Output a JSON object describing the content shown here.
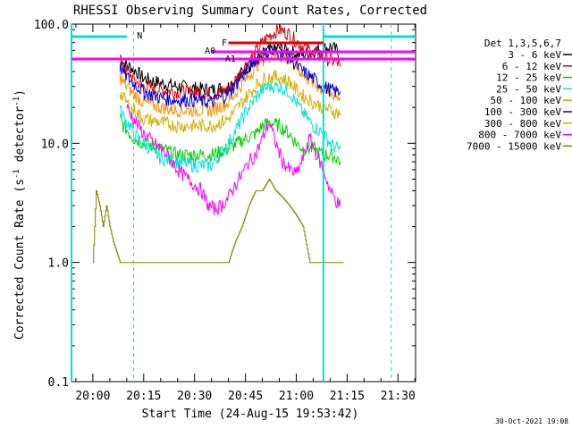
{
  "chart_data": {
    "type": "line",
    "title": "RHESSI Observing Summary Count Rates, Corrected",
    "xlabel": "Start Time (24-Aug-15 19:53:42)",
    "ylabel": "Corrected Count Rate (s⁻¹ detector⁻¹)",
    "ylabel_main": "Corrected Count Rate (s",
    "ylabel_sup1": "-1",
    "ylabel_mid": " detector",
    "ylabel_sup2": "-1",
    "ylabel_end": ")",
    "footer": "30-Oct-2021 19:08",
    "y_scale": "log",
    "ylim": [
      0.1,
      100
    ],
    "xlim": [
      "19:54",
      "21:35"
    ],
    "x_ticks": [
      "20:00",
      "20:15",
      "20:30",
      "20:45",
      "21:00",
      "21:15",
      "21:30"
    ],
    "x_tick_minutes": [
      0,
      15,
      30,
      45,
      60,
      75,
      90
    ],
    "y_ticks": [
      "0.1",
      "1.0",
      "10.0",
      "100.0"
    ],
    "y_tick_values": [
      0.1,
      1,
      10,
      100
    ],
    "legend_title": "Det 1,3,5,6,7",
    "legend_position": "right",
    "series": [
      {
        "name": "3 - 6 keV",
        "color": "#000000",
        "x": [
          8,
          9,
          10,
          11,
          12,
          15,
          20,
          25,
          30,
          35,
          40,
          45,
          48,
          50,
          52,
          55,
          58,
          60,
          62,
          65,
          68,
          70,
          72,
          73
        ],
        "y": [
          55,
          48,
          45,
          44,
          42,
          35,
          32,
          30,
          29,
          28,
          30,
          42,
          50,
          55,
          60,
          63,
          60,
          57,
          55,
          60,
          62,
          65,
          60,
          52
        ]
      },
      {
        "name": "6 - 12 keV",
        "color": "#e00000",
        "x": [
          8,
          9,
          10,
          11,
          12,
          15,
          20,
          25,
          30,
          35,
          40,
          45,
          48,
          50,
          52,
          55,
          58,
          60,
          62,
          65,
          68,
          70,
          72,
          73
        ],
        "y": [
          47,
          42,
          40,
          38,
          34,
          30,
          28,
          27,
          27,
          26,
          28,
          45,
          58,
          70,
          80,
          90,
          82,
          72,
          65,
          58,
          52,
          50,
          48,
          44
        ]
      },
      {
        "name": "12 - 25 keV",
        "color": "#00d000",
        "x": [
          8,
          9,
          10,
          11,
          12,
          15,
          20,
          25,
          30,
          35,
          40,
          45,
          48,
          50,
          52,
          55,
          58,
          60,
          62,
          65,
          68,
          70,
          72,
          73
        ],
        "y": [
          16,
          14,
          13,
          12,
          11,
          10,
          9,
          8,
          8,
          8,
          9,
          11,
          12,
          14,
          15,
          14,
          12,
          10,
          9,
          9,
          8,
          8,
          7.5,
          7
        ]
      },
      {
        "name": "25 - 50 keV",
        "color": "#00e0e0",
        "x": [
          8,
          9,
          10,
          11,
          12,
          15,
          20,
          25,
          30,
          35,
          40,
          45,
          48,
          50,
          52,
          55,
          58,
          60,
          62,
          65,
          68,
          70,
          72,
          73
        ],
        "y": [
          19,
          17,
          15,
          14,
          12,
          10,
          7.5,
          7,
          6.5,
          6.5,
          10,
          18,
          24,
          28,
          30,
          30,
          27,
          22,
          18,
          14,
          12,
          10,
          9,
          9
        ]
      },
      {
        "name": "50 - 100 keV",
        "color": "#ff9000",
        "x": [
          8,
          9,
          10,
          11,
          12,
          15,
          20,
          25,
          30,
          35,
          40,
          45,
          48,
          50,
          52,
          55,
          58,
          60,
          62,
          65,
          68,
          70,
          72,
          73
        ],
        "y": [
          36,
          32,
          30,
          28,
          26,
          22,
          20,
          19,
          19,
          19,
          22,
          34,
          44,
          50,
          54,
          54,
          50,
          44,
          38,
          32,
          28,
          26,
          25,
          24
        ]
      },
      {
        "name": "100 - 300 keV",
        "color": "#0000e0",
        "x": [
          8,
          9,
          10,
          11,
          12,
          15,
          20,
          25,
          30,
          35,
          40,
          45,
          48,
          50,
          52,
          55,
          58,
          60,
          62,
          65,
          68,
          70,
          72,
          73
        ],
        "y": [
          44,
          40,
          36,
          34,
          32,
          27,
          24,
          23,
          23,
          22,
          26,
          40,
          50,
          55,
          58,
          57,
          52,
          45,
          40,
          35,
          30,
          28,
          27,
          27
        ]
      },
      {
        "name": "300 - 800 keV",
        "color": "#d0b000",
        "x": [
          8,
          9,
          10,
          11,
          12,
          15,
          20,
          25,
          30,
          35,
          40,
          45,
          48,
          50,
          52,
          55,
          58,
          60,
          62,
          65,
          68,
          70,
          72,
          73
        ],
        "y": [
          27,
          24,
          22,
          20,
          19,
          16,
          15,
          14,
          14,
          14,
          16,
          24,
          30,
          34,
          36,
          36,
          33,
          28,
          25,
          22,
          20,
          19,
          18,
          18
        ]
      },
      {
        "name": "800 - 7000 keV",
        "color": "#ff00ff",
        "x": [
          10,
          12,
          15,
          18,
          20,
          22,
          25,
          28,
          30,
          32,
          34,
          36,
          38,
          40,
          42,
          44,
          46,
          48,
          50,
          52,
          54,
          56,
          58,
          60,
          62,
          64,
          66,
          68,
          70,
          72,
          73
        ],
        "y": [
          20,
          16,
          12,
          10,
          9,
          8,
          6,
          5,
          4.5,
          4,
          3,
          2.8,
          3,
          3.5,
          4.5,
          5.5,
          7,
          8,
          11,
          15,
          10,
          7,
          6,
          5.5,
          7.5,
          11,
          8,
          6,
          4,
          3.2,
          3
        ]
      },
      {
        "name": "7000 - 15000 keV",
        "color": "#808000",
        "x": [
          0,
          1,
          2,
          3,
          4,
          5,
          6,
          8,
          10,
          12,
          14,
          16,
          18,
          20,
          22,
          24,
          26,
          28,
          30,
          32,
          34,
          36,
          38,
          40,
          42,
          44,
          46,
          48,
          50,
          52,
          54,
          56,
          58,
          60,
          62,
          64,
          66,
          68,
          70,
          72,
          74
        ],
        "y": [
          1,
          4,
          3,
          2,
          3,
          2,
          1.5,
          1,
          1,
          1,
          1,
          1,
          1,
          1,
          1,
          1,
          1,
          1,
          1,
          1,
          1,
          1,
          1,
          1,
          1.5,
          2,
          3,
          4,
          4,
          5,
          4,
          3.5,
          3,
          2.5,
          2,
          1,
          1,
          1,
          1,
          1,
          1
        ]
      }
    ],
    "annotations": {
      "lines": [
        {
          "label": "N",
          "color": "#00e0e0"
        },
        {
          "label": "F",
          "color": "#e00000"
        },
        {
          "label": "A0",
          "color": "#ff00ff"
        },
        {
          "label": "A1",
          "color": "#ff00ff"
        }
      ]
    }
  }
}
